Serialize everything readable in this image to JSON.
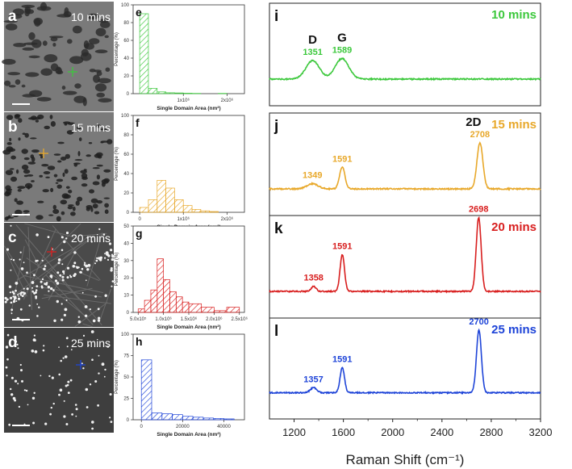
{
  "figure": {
    "micrographs": [
      {
        "letter": "a",
        "time": "10 mins",
        "color": "#3cc83c",
        "texture": "patchy"
      },
      {
        "letter": "b",
        "time": "15 mins",
        "color": "#e8a82a",
        "texture": "holes"
      },
      {
        "letter": "c",
        "time": "20 mins",
        "color": "#d81e1e",
        "texture": "bright-dots"
      },
      {
        "letter": "d",
        "time": "25 mins",
        "color": "#1e44d8",
        "texture": "sparse-dots"
      }
    ]
  },
  "chart_data": [
    {
      "type": "bar",
      "panel": "e",
      "color": "#3cc83c",
      "ylabel": "Percentage (%)",
      "xlabel": "Single Domain Area (nm²)",
      "xlim": [
        -150000,
        2400000
      ],
      "ylim": [
        0,
        100
      ],
      "xticks": [
        {
          "v": 1000000,
          "label": "1x10⁶"
        },
        {
          "v": 2000000,
          "label": "2x10⁶"
        }
      ],
      "yticks": [
        0,
        20,
        40,
        60,
        80,
        100
      ],
      "bars": [
        {
          "x0": 0,
          "x1": 200000,
          "v": 90
        },
        {
          "x0": 200000,
          "x1": 400000,
          "v": 6
        },
        {
          "x0": 400000,
          "x1": 600000,
          "v": 2
        },
        {
          "x0": 600000,
          "x1": 800000,
          "v": 1
        },
        {
          "x0": 800000,
          "x1": 1000000,
          "v": 0.8
        },
        {
          "x0": 1000000,
          "x1": 1200000,
          "v": 0.5
        },
        {
          "x0": 1200000,
          "x1": 1400000,
          "v": 0.3
        },
        {
          "x0": 1800000,
          "x1": 2000000,
          "v": 0.3
        }
      ]
    },
    {
      "type": "bar",
      "panel": "f",
      "color": "#e8a82a",
      "ylabel": "Percentage (%)",
      "xlabel": "Single Domain Area (nm²)",
      "xlim": [
        -150000,
        2400000
      ],
      "ylim": [
        0,
        100
      ],
      "xticks": [
        {
          "v": 0,
          "label": "0"
        },
        {
          "v": 1000000,
          "label": "1x10⁶"
        },
        {
          "v": 2000000,
          "label": "2x10⁶"
        }
      ],
      "yticks": [
        0,
        20,
        40,
        60,
        80,
        100
      ],
      "bars": [
        {
          "x0": 0,
          "x1": 200000,
          "v": 5
        },
        {
          "x0": 200000,
          "x1": 400000,
          "v": 13
        },
        {
          "x0": 400000,
          "x1": 600000,
          "v": 33
        },
        {
          "x0": 600000,
          "x1": 800000,
          "v": 25
        },
        {
          "x0": 800000,
          "x1": 1000000,
          "v": 13
        },
        {
          "x0": 1000000,
          "x1": 1200000,
          "v": 7
        },
        {
          "x0": 1200000,
          "x1": 1400000,
          "v": 3
        },
        {
          "x0": 1400000,
          "x1": 1600000,
          "v": 1.5
        },
        {
          "x0": 1600000,
          "x1": 1800000,
          "v": 0.8
        }
      ]
    },
    {
      "type": "bar",
      "panel": "g",
      "color": "#d81e1e",
      "ylabel": "Percentage (%)",
      "xlabel": "Single Domain Area (nm²)",
      "xlim": [
        400000,
        2600000
      ],
      "ylim": [
        0,
        50
      ],
      "xticks": [
        {
          "v": 500000,
          "label": "5.0x10⁵"
        },
        {
          "v": 1000000,
          "label": "1.0x10⁶"
        },
        {
          "v": 1500000,
          "label": "1.5x10⁶"
        },
        {
          "v": 2000000,
          "label": "2.0x10⁶"
        },
        {
          "v": 2500000,
          "label": "2.5x10⁶"
        }
      ],
      "yticks": [
        0,
        10,
        20,
        30,
        40,
        50
      ],
      "bars": [
        {
          "x0": 500000,
          "x1": 625000,
          "v": 2
        },
        {
          "x0": 625000,
          "x1": 750000,
          "v": 7
        },
        {
          "x0": 750000,
          "x1": 875000,
          "v": 13
        },
        {
          "x0": 875000,
          "x1": 1000000,
          "v": 31
        },
        {
          "x0": 1000000,
          "x1": 1125000,
          "v": 19
        },
        {
          "x0": 1125000,
          "x1": 1250000,
          "v": 12
        },
        {
          "x0": 1250000,
          "x1": 1375000,
          "v": 9
        },
        {
          "x0": 1375000,
          "x1": 1500000,
          "v": 6
        },
        {
          "x0": 1500000,
          "x1": 1750000,
          "v": 5
        },
        {
          "x0": 1750000,
          "x1": 2000000,
          "v": 3
        },
        {
          "x0": 2000000,
          "x1": 2250000,
          "v": 1
        },
        {
          "x0": 2250000,
          "x1": 2500000,
          "v": 3
        }
      ]
    },
    {
      "type": "bar",
      "panel": "h",
      "color": "#1e44d8",
      "ylabel": "Percentage (%)",
      "xlabel": "Single Domain Area (nm²)",
      "xlim": [
        -4000,
        50000
      ],
      "ylim": [
        0,
        100
      ],
      "xticks": [
        {
          "v": 0,
          "label": "0"
        },
        {
          "v": 20000,
          "label": "20000"
        },
        {
          "v": 40000,
          "label": "40000"
        }
      ],
      "yticks": [
        0,
        25,
        50,
        75,
        100
      ],
      "bars": [
        {
          "x0": 0,
          "x1": 5000,
          "v": 70
        },
        {
          "x0": 5000,
          "x1": 10000,
          "v": 8
        },
        {
          "x0": 10000,
          "x1": 15000,
          "v": 7
        },
        {
          "x0": 15000,
          "x1": 20000,
          "v": 6
        },
        {
          "x0": 20000,
          "x1": 25000,
          "v": 4
        },
        {
          "x0": 25000,
          "x1": 30000,
          "v": 3
        },
        {
          "x0": 30000,
          "x1": 35000,
          "v": 2
        },
        {
          "x0": 35000,
          "x1": 40000,
          "v": 1.5
        },
        {
          "x0": 40000,
          "x1": 45000,
          "v": 1
        }
      ]
    },
    {
      "type": "line",
      "panel": "i",
      "title": "10 mins",
      "color": "#3cc83c",
      "xlim": [
        1000,
        3200
      ],
      "peaks": [
        {
          "x": 1351,
          "h": 0.18,
          "w": 55
        },
        {
          "x": 1589,
          "h": 0.2,
          "w": 55
        }
      ],
      "peak_labels": [
        "1351",
        "1589"
      ],
      "band_labels": [
        "D",
        "G"
      ]
    },
    {
      "type": "line",
      "panel": "j",
      "title": "15 mins",
      "color": "#e8a82a",
      "xlim": [
        1000,
        3200
      ],
      "peaks": [
        {
          "x": 1349,
          "h": 0.05,
          "w": 45
        },
        {
          "x": 1591,
          "h": 0.21,
          "w": 22
        },
        {
          "x": 2708,
          "h": 0.45,
          "w": 24
        }
      ],
      "peak_labels": [
        "1349",
        "1591",
        "2708"
      ],
      "band_labels": [
        "2D"
      ]
    },
    {
      "type": "line",
      "panel": "k",
      "title": "20 mins",
      "color": "#d81e1e",
      "xlim": [
        1000,
        3200
      ],
      "peaks": [
        {
          "x": 1358,
          "h": 0.05,
          "w": 20
        },
        {
          "x": 1591,
          "h": 0.36,
          "w": 18
        },
        {
          "x": 2698,
          "h": 0.72,
          "w": 20
        }
      ],
      "peak_labels": [
        "1358",
        "1591",
        "2698"
      ],
      "band_labels": []
    },
    {
      "type": "line",
      "panel": "l",
      "title": "25 mins",
      "color": "#1e44d8",
      "xlim": [
        1000,
        3200
      ],
      "peaks": [
        {
          "x": 1357,
          "h": 0.05,
          "w": 25
        },
        {
          "x": 1591,
          "h": 0.25,
          "w": 18
        },
        {
          "x": 2700,
          "h": 0.62,
          "w": 20
        }
      ],
      "peak_labels": [
        "1357",
        "1591",
        "2700"
      ],
      "band_labels": []
    },
    {
      "type": "axis",
      "xlabel": "Raman Shift (cm⁻¹)",
      "xticks": [
        {
          "v": 1200,
          "label": "1200"
        },
        {
          "v": 1600,
          "label": "1600"
        },
        {
          "v": 2000,
          "label": "2000"
        },
        {
          "v": 2400,
          "label": "2400"
        },
        {
          "v": 2800,
          "label": "2800"
        },
        {
          "v": 3200,
          "label": "3200"
        }
      ]
    }
  ]
}
